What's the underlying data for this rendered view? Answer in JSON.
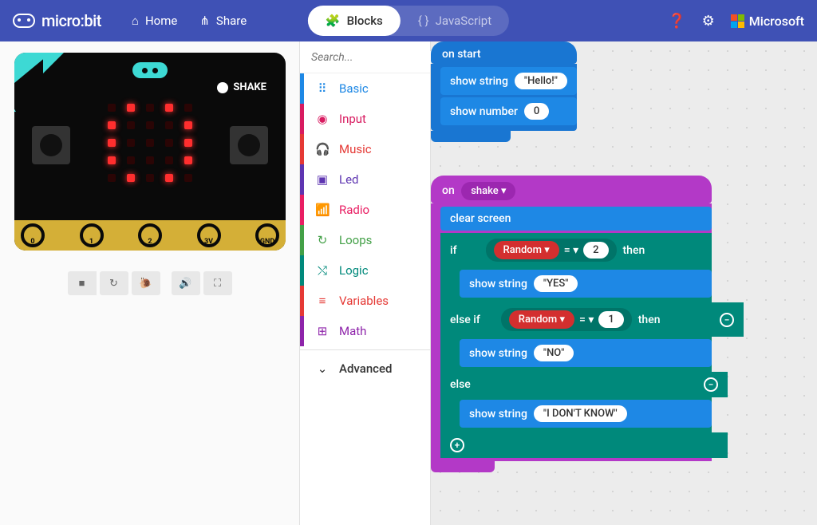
{
  "header": {
    "logo_text": "micro:bit",
    "home": "Home",
    "share": "Share",
    "blocks": "Blocks",
    "javascript": "JavaScript",
    "ms": "Microsoft"
  },
  "ms_colors": [
    "#f25022",
    "#7fba00",
    "#00a4ef",
    "#ffb900"
  ],
  "search_placeholder": "Search...",
  "toolbox": [
    {
      "label": "Basic",
      "color": "#1e88e5",
      "icon": "⠿"
    },
    {
      "label": "Input",
      "color": "#d81b60",
      "icon": "◉"
    },
    {
      "label": "Music",
      "color": "#e53935",
      "icon": "🎧"
    },
    {
      "label": "Led",
      "color": "#5e35b1",
      "icon": "▣"
    },
    {
      "label": "Radio",
      "color": "#e91e63",
      "icon": "📶"
    },
    {
      "label": "Loops",
      "color": "#43a047",
      "icon": "↻"
    },
    {
      "label": "Logic",
      "color": "#00897b",
      "icon": "⤭"
    },
    {
      "label": "Variables",
      "color": "#e53935",
      "icon": "≡"
    },
    {
      "label": "Math",
      "color": "#8e24aa",
      "icon": "⊞"
    }
  ],
  "advanced_label": "Advanced",
  "colors": {
    "basic_block": "#1e88e5",
    "basic_dark": "#1976d2",
    "input_block": "#b339c7",
    "logic_block": "#00897b",
    "logic_dark": "#00796b",
    "math_red": "#d32f2f",
    "shake_pill": "#9c27b0"
  },
  "blocks": {
    "on_start": "on start",
    "show_string": "show string",
    "show_number": "show number",
    "hello": "Hello!",
    "zero": "0",
    "on": "on",
    "shake": "shake ▾",
    "clear_screen": "clear screen",
    "if": "if",
    "then": "then",
    "else_if": "else if",
    "else": "else",
    "random": "Random ▾",
    "eq": "= ▾",
    "two": "2",
    "one": "1",
    "yes": "YES",
    "no": "NO",
    "idk": "I DON'T KNOW"
  },
  "sim": {
    "shake_label": "SHAKE",
    "pin_labels": [
      "0",
      "1",
      "2",
      "3V",
      "GND"
    ],
    "led_pattern": [
      0,
      1,
      0,
      1,
      0,
      1,
      0,
      0,
      0,
      1,
      1,
      0,
      0,
      0,
      1,
      1,
      0,
      0,
      0,
      1,
      0,
      1,
      0,
      1,
      0
    ]
  }
}
